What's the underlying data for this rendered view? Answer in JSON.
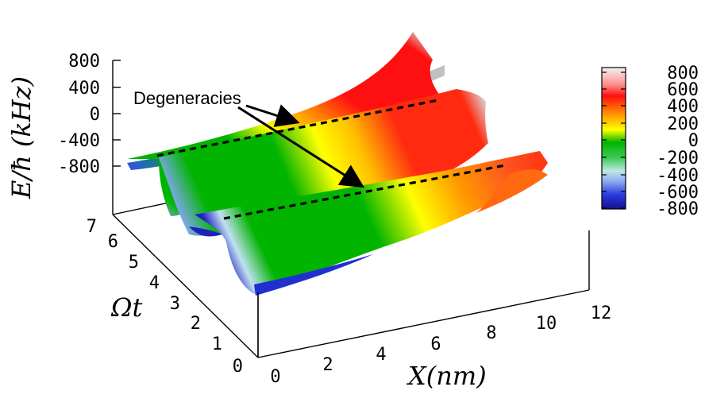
{
  "chart_data": {
    "type": "surface3d",
    "z_axis": {
      "label": "E/ħ (kHz)",
      "ticks": [
        "800",
        "400",
        "0",
        "-400",
        "-800"
      ],
      "range": [
        -800,
        800
      ]
    },
    "x_axis": {
      "label": "X(nm)",
      "ticks": [
        "0",
        "2",
        "4",
        "6",
        "8",
        "10",
        "12"
      ],
      "range": [
        0,
        12
      ]
    },
    "y_axis": {
      "label": "Ωt",
      "ticks": [
        "0",
        "1",
        "2",
        "3",
        "4",
        "5",
        "6",
        "7"
      ],
      "range": [
        0,
        7
      ]
    },
    "colorbar": {
      "ticks": [
        "800",
        "600",
        "400",
        "200",
        "0",
        "-200",
        "-400",
        "-600",
        "-800"
      ],
      "range": [
        -800,
        800
      ],
      "stops": [
        {
          "value": -800,
          "color": "#1a1aa8"
        },
        {
          "value": -600,
          "color": "#3a5cf0"
        },
        {
          "value": -400,
          "color": "#a8d8e8"
        },
        {
          "value": -200,
          "color": "#3ccc55"
        },
        {
          "value": 0,
          "color": "#00b400"
        },
        {
          "value": 200,
          "color": "#ffff00"
        },
        {
          "value": 400,
          "color": "#ff9a00"
        },
        {
          "value": 600,
          "color": "#ff1010"
        },
        {
          "value": 800,
          "color": "#ffffff"
        }
      ]
    },
    "annotation": {
      "text": "Degeneracies"
    }
  }
}
